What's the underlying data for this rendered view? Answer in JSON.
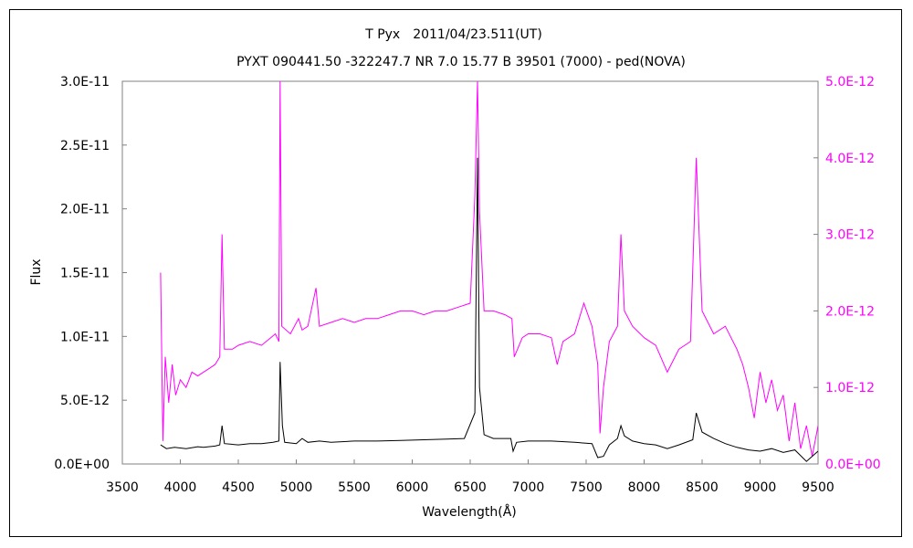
{
  "chart_data": {
    "type": "line",
    "title": "T Pyx　2011/04/23.511(UT)",
    "subtitle": "PYXT 090441.50 -322247.7 NR 7.0 15.77 B 39501 (7000) - ped(NOVA)",
    "xlabel": "Wavelength(Å)",
    "ylabel": "Flux",
    "xlim": [
      3500,
      9500
    ],
    "ylim": [
      0,
      3e-11
    ],
    "y2lim": [
      0,
      5e-12
    ],
    "grid": false,
    "legend": "none",
    "x_ticks": [
      "3500",
      "4000",
      "4500",
      "5000",
      "5500",
      "6000",
      "6500",
      "7000",
      "7500",
      "8000",
      "8500",
      "9000",
      "9500"
    ],
    "y_ticks": [
      "0.0E+00",
      "5.0E-12",
      "1.0E-11",
      "1.5E-11",
      "2.0E-11",
      "2.5E-11",
      "3.0E-11"
    ],
    "y2_ticks": [
      "0.0E+00",
      "1.0E-12",
      "2.0E-12",
      "3.0E-12",
      "4.0E-12",
      "5.0E-12"
    ],
    "series": [
      {
        "axis": "left",
        "color": "#000000",
        "points": [
          [
            3830,
            1.5e-12
          ],
          [
            3880,
            1.2e-12
          ],
          [
            3950,
            1.3e-12
          ],
          [
            4050,
            1.2e-12
          ],
          [
            4150,
            1.35e-12
          ],
          [
            4200,
            1.3e-12
          ],
          [
            4300,
            1.4e-12
          ],
          [
            4340,
            1.5e-12
          ],
          [
            4360,
            3e-12
          ],
          [
            4380,
            1.6e-12
          ],
          [
            4500,
            1.5e-12
          ],
          [
            4600,
            1.6e-12
          ],
          [
            4700,
            1.6e-12
          ],
          [
            4800,
            1.7e-12
          ],
          [
            4850,
            1.8e-12
          ],
          [
            4861,
            8e-12
          ],
          [
            4880,
            3e-12
          ],
          [
            4900,
            1.7e-12
          ],
          [
            5000,
            1.6e-12
          ],
          [
            5050,
            2e-12
          ],
          [
            5100,
            1.7e-12
          ],
          [
            5200,
            1.8e-12
          ],
          [
            5300,
            1.7e-12
          ],
          [
            5500,
            1.8e-12
          ],
          [
            5700,
            1.8e-12
          ],
          [
            5900,
            1.85e-12
          ],
          [
            6100,
            1.9e-12
          ],
          [
            6300,
            1.95e-12
          ],
          [
            6450,
            2e-12
          ],
          [
            6540,
            4e-12
          ],
          [
            6563,
            2.4e-11
          ],
          [
            6580,
            6e-12
          ],
          [
            6620,
            2.3e-12
          ],
          [
            6700,
            2e-12
          ],
          [
            6850,
            2e-12
          ],
          [
            6870,
            1e-12
          ],
          [
            6900,
            1.7e-12
          ],
          [
            7000,
            1.8e-12
          ],
          [
            7200,
            1.8e-12
          ],
          [
            7400,
            1.7e-12
          ],
          [
            7550,
            1.6e-12
          ],
          [
            7600,
            5e-13
          ],
          [
            7650,
            6e-13
          ],
          [
            7700,
            1.5e-12
          ],
          [
            7770,
            2e-12
          ],
          [
            7800,
            3e-12
          ],
          [
            7830,
            2.2e-12
          ],
          [
            7900,
            1.8e-12
          ],
          [
            8000,
            1.6e-12
          ],
          [
            8100,
            1.5e-12
          ],
          [
            8200,
            1.2e-12
          ],
          [
            8300,
            1.5e-12
          ],
          [
            8420,
            1.9e-12
          ],
          [
            8450,
            4e-12
          ],
          [
            8500,
            2.5e-12
          ],
          [
            8600,
            2e-12
          ],
          [
            8700,
            1.6e-12
          ],
          [
            8800,
            1.3e-12
          ],
          [
            8900,
            1.1e-12
          ],
          [
            9000,
            1e-12
          ],
          [
            9100,
            1.2e-12
          ],
          [
            9200,
            9e-13
          ],
          [
            9300,
            1.1e-12
          ],
          [
            9400,
            2e-13
          ],
          [
            9450,
            6e-13
          ],
          [
            9500,
            1e-12
          ]
        ]
      },
      {
        "axis": "right",
        "color": "#ff00ff",
        "points": [
          [
            3830,
            2.5e-12
          ],
          [
            3850,
            3e-13
          ],
          [
            3870,
            1.4e-12
          ],
          [
            3900,
            8e-13
          ],
          [
            3930,
            1.3e-12
          ],
          [
            3960,
            9e-13
          ],
          [
            4000,
            1.1e-12
          ],
          [
            4050,
            1e-12
          ],
          [
            4100,
            1.2e-12
          ],
          [
            4150,
            1.15e-12
          ],
          [
            4200,
            1.2e-12
          ],
          [
            4250,
            1.25e-12
          ],
          [
            4300,
            1.3e-12
          ],
          [
            4340,
            1.4e-12
          ],
          [
            4360,
            3e-12
          ],
          [
            4380,
            1.5e-12
          ],
          [
            4450,
            1.5e-12
          ],
          [
            4500,
            1.55e-12
          ],
          [
            4600,
            1.6e-12
          ],
          [
            4700,
            1.55e-12
          ],
          [
            4780,
            1.65e-12
          ],
          [
            4820,
            1.7e-12
          ],
          [
            4850,
            1.6e-12
          ],
          [
            4861,
            5e-12
          ],
          [
            4875,
            1.8e-12
          ],
          [
            4950,
            1.7e-12
          ],
          [
            5020,
            1.9e-12
          ],
          [
            5050,
            1.75e-12
          ],
          [
            5100,
            1.8e-12
          ],
          [
            5170,
            2.3e-12
          ],
          [
            5200,
            1.8e-12
          ],
          [
            5300,
            1.85e-12
          ],
          [
            5400,
            1.9e-12
          ],
          [
            5500,
            1.85e-12
          ],
          [
            5600,
            1.9e-12
          ],
          [
            5700,
            1.9e-12
          ],
          [
            5800,
            1.95e-12
          ],
          [
            5900,
            2e-12
          ],
          [
            6000,
            2e-12
          ],
          [
            6100,
            1.95e-12
          ],
          [
            6200,
            2e-12
          ],
          [
            6300,
            2e-12
          ],
          [
            6400,
            2.05e-12
          ],
          [
            6500,
            2.1e-12
          ],
          [
            6540,
            3.5e-12
          ],
          [
            6563,
            5e-12
          ],
          [
            6580,
            3.3e-12
          ],
          [
            6620,
            2e-12
          ],
          [
            6700,
            2e-12
          ],
          [
            6800,
            1.95e-12
          ],
          [
            6860,
            1.9e-12
          ],
          [
            6880,
            1.4e-12
          ],
          [
            6950,
            1.65e-12
          ],
          [
            7000,
            1.7e-12
          ],
          [
            7100,
            1.7e-12
          ],
          [
            7200,
            1.65e-12
          ],
          [
            7250,
            1.3e-12
          ],
          [
            7300,
            1.6e-12
          ],
          [
            7400,
            1.7e-12
          ],
          [
            7480,
            2.1e-12
          ],
          [
            7550,
            1.8e-12
          ],
          [
            7600,
            1.3e-12
          ],
          [
            7620,
            4e-13
          ],
          [
            7650,
            1e-12
          ],
          [
            7700,
            1.6e-12
          ],
          [
            7770,
            1.8e-12
          ],
          [
            7800,
            3e-12
          ],
          [
            7830,
            2e-12
          ],
          [
            7900,
            1.8e-12
          ],
          [
            8000,
            1.65e-12
          ],
          [
            8100,
            1.55e-12
          ],
          [
            8200,
            1.2e-12
          ],
          [
            8300,
            1.5e-12
          ],
          [
            8400,
            1.6e-12
          ],
          [
            8450,
            4e-12
          ],
          [
            8500,
            2e-12
          ],
          [
            8600,
            1.7e-12
          ],
          [
            8700,
            1.8e-12
          ],
          [
            8800,
            1.5e-12
          ],
          [
            8850,
            1.3e-12
          ],
          [
            8900,
            1e-12
          ],
          [
            8950,
            6e-13
          ],
          [
            9000,
            1.2e-12
          ],
          [
            9050,
            8e-13
          ],
          [
            9100,
            1.1e-12
          ],
          [
            9150,
            7e-13
          ],
          [
            9200,
            9e-13
          ],
          [
            9250,
            3e-13
          ],
          [
            9300,
            8e-13
          ],
          [
            9350,
            2e-13
          ],
          [
            9400,
            5e-13
          ],
          [
            9450,
            1e-13
          ],
          [
            9500,
            5e-13
          ]
        ]
      }
    ]
  }
}
